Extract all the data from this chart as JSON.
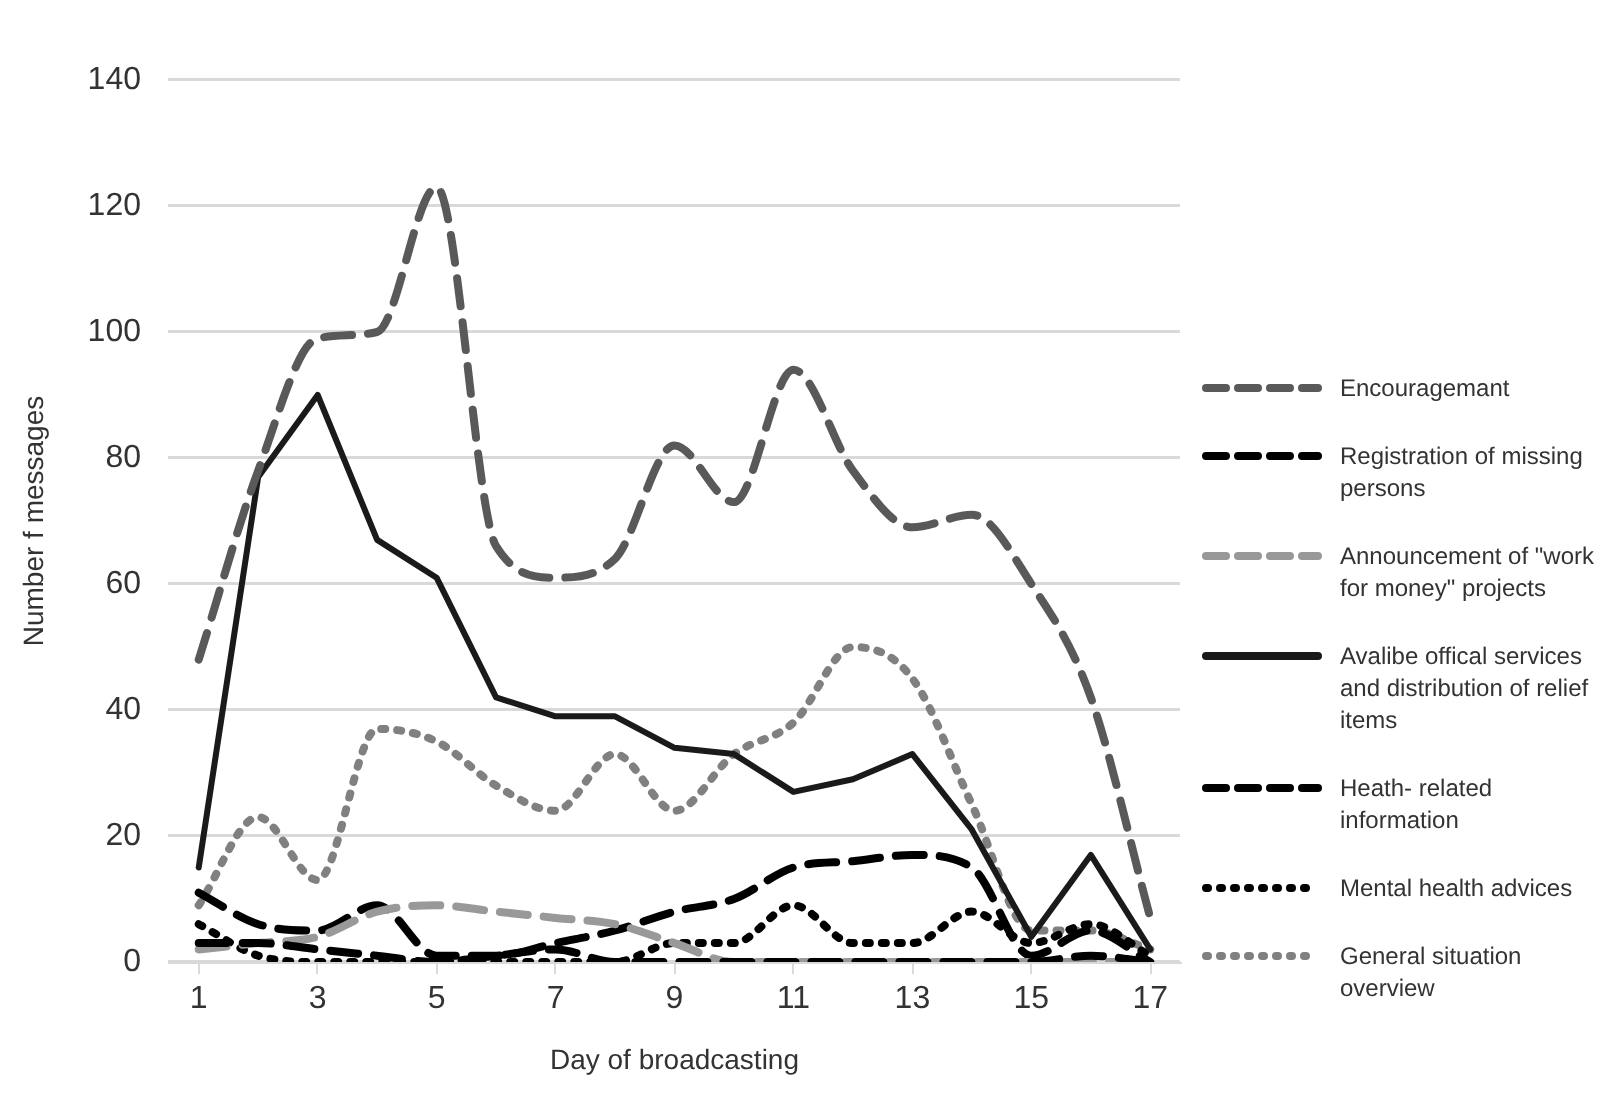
{
  "chart_data": {
    "type": "line",
    "xlabel": "Day of broadcasting",
    "ylabel": "Number f messages",
    "x": [
      1,
      2,
      3,
      4,
      5,
      6,
      7,
      8,
      9,
      10,
      11,
      12,
      13,
      14,
      15,
      16,
      17
    ],
    "xlim": [
      0.5,
      17.5
    ],
    "xticks": [
      1,
      3,
      5,
      7,
      9,
      11,
      13,
      15,
      17
    ],
    "ylim": [
      0,
      140
    ],
    "yticks": [
      0,
      20,
      40,
      60,
      80,
      100,
      120,
      140
    ],
    "grid": "y",
    "legend": "right",
    "marker": "none",
    "series": [
      {
        "name": "Encouragemant",
        "color": "#595959",
        "line_style": "dashed",
        "values": [
          48,
          78,
          99,
          100,
          123,
          66,
          61,
          64,
          82,
          73,
          94,
          78,
          69,
          71,
          60,
          42,
          7
        ]
      },
      {
        "name": "Registration of missing persons",
        "color": "#000000",
        "line_style": "dashed",
        "values": [
          3,
          3,
          2,
          1,
          0,
          1,
          2,
          0,
          0,
          0,
          0,
          0,
          0,
          0,
          0,
          1,
          0
        ]
      },
      {
        "name": "Announcement of \"work for money\" projects",
        "color": "#999999",
        "line_style": "dashed",
        "values": [
          2,
          3,
          4,
          8,
          9,
          8,
          7,
          6,
          3,
          0,
          0,
          0,
          0,
          0,
          0,
          0,
          0
        ]
      },
      {
        "name": "Avalibe offical services and distribution of relief items",
        "color": "#1a1a1a",
        "line_style": "solid",
        "values": [
          15,
          77,
          90,
          67,
          61,
          42,
          39,
          39,
          34,
          33,
          27,
          29,
          33,
          21,
          4,
          17,
          2
        ]
      },
      {
        "name": "Heath- related information",
        "color": "#000000",
        "line_style": "dashed",
        "values": [
          11,
          6,
          5,
          9,
          1,
          1,
          3,
          5,
          8,
          10,
          15,
          16,
          17,
          15,
          1,
          5,
          0
        ]
      },
      {
        "name": "Mental health advices",
        "color": "#000000",
        "line_style": "dotted",
        "values": [
          6,
          1,
          0,
          0,
          0,
          0,
          0,
          0,
          3,
          3,
          9,
          3,
          3,
          8,
          3,
          6,
          1
        ]
      },
      {
        "name": "General situation overview",
        "color": "#808080",
        "line_style": "dotted",
        "values": [
          9,
          23,
          13,
          37,
          35,
          28,
          24,
          33,
          24,
          33,
          38,
          50,
          45,
          25,
          5,
          5,
          2
        ]
      }
    ]
  }
}
